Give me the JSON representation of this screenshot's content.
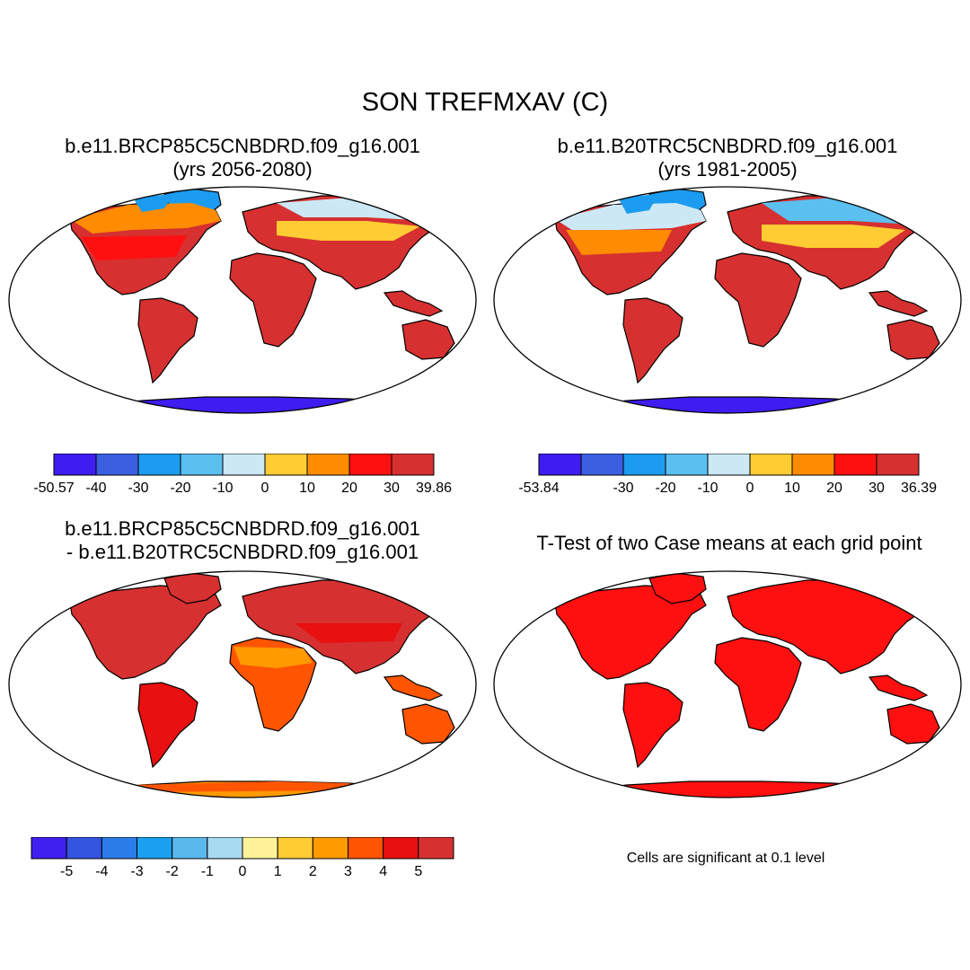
{
  "figure": {
    "title": "SON TREFMXAV (C)"
  },
  "panels": [
    {
      "id": "future",
      "title_line1": "b.e11.BRCP85C5CNBDRD.f09_g16.001",
      "title_line2": "(yrs 2056-2080)",
      "colorbar": {
        "colors": [
          "#3f1cf0",
          "#3a5fe0",
          "#1c9cf0",
          "#5bbff0",
          "#cce8f5",
          "#ffcc33",
          "#ff8c00",
          "#ff1010",
          "#d63030"
        ],
        "labels": [
          "-50.57",
          "-40",
          "-30",
          "-20",
          "-10",
          "0",
          "10",
          "20",
          "30",
          "39.86"
        ]
      }
    },
    {
      "id": "historical",
      "title_line1": "b.e11.B20TRC5CNBDRD.f09_g16.001",
      "title_line2": "(yrs 1981-2005)",
      "colorbar": {
        "colors": [
          "#3f1cf0",
          "#3a5fe0",
          "#1c9cf0",
          "#5bbff0",
          "#cce8f5",
          "#ffcc33",
          "#ff8c00",
          "#ff1010",
          "#d63030"
        ],
        "labels": [
          "-53.84",
          "",
          "-30",
          "-20",
          "-10",
          "0",
          "10",
          "20",
          "30",
          "36.39"
        ]
      }
    },
    {
      "id": "difference",
      "title_line1": "b.e11.BRCP85C5CNBDRD.f09_g16.001",
      "title_line2": "- b.e11.B20TRC5CNBDRD.f09_g16.001",
      "colorbar": {
        "colors": [
          "#4020f0",
          "#3455e0",
          "#2a7de8",
          "#1aa0f0",
          "#5ab8ec",
          "#a8daf0",
          "#fff39a",
          "#ffcc33",
          "#ff9a00",
          "#ff5500",
          "#e81010",
          "#d63030"
        ],
        "labels": [
          "-5",
          "-4",
          "-3",
          "-2",
          "-1",
          "0",
          "1",
          "2",
          "3",
          "4",
          "5"
        ]
      }
    },
    {
      "id": "ttest",
      "title_line1": "T-Test of two Case means at each grid point",
      "note": "Cells are significant at 0.1 level"
    }
  ]
}
